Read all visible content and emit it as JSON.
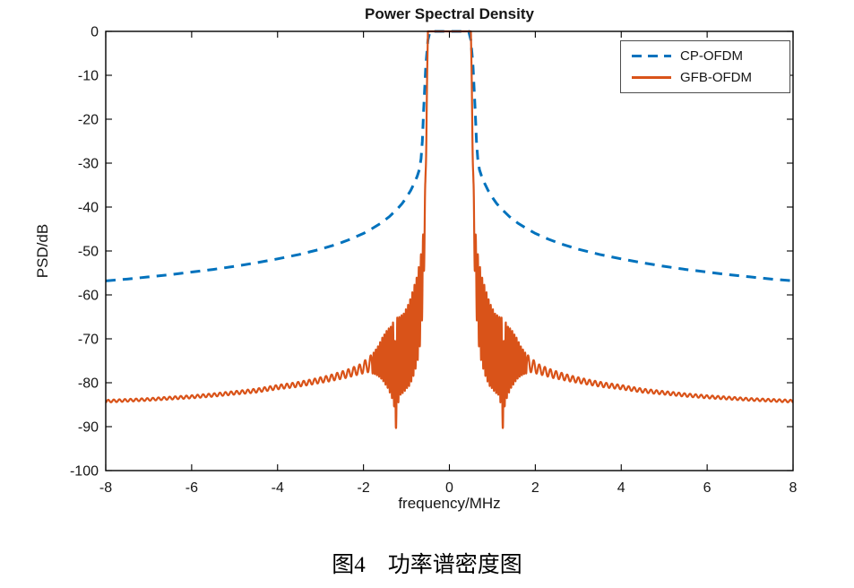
{
  "caption": "图4　功率谱密度图",
  "chart_data": {
    "type": "line",
    "title": "Power Spectral Density",
    "xlabel": "frequency/MHz",
    "ylabel": "PSD/dB",
    "xlim": [
      -8,
      8
    ],
    "ylim": [
      -100,
      0
    ],
    "xticks": [
      -8,
      -6,
      -4,
      -2,
      0,
      2,
      4,
      6,
      8
    ],
    "yticks": [
      0,
      -10,
      -20,
      -30,
      -40,
      -50,
      -60,
      -70,
      -80,
      -90,
      -100
    ],
    "grid": false,
    "legend_position": "top-right",
    "series": [
      {
        "name": "CP-OFDM",
        "color": "#0072BD",
        "style": "dashed",
        "symmetric": true,
        "points": [
          [
            0,
            0
          ],
          [
            0.45,
            0
          ],
          [
            0.5,
            -2
          ],
          [
            0.55,
            -8
          ],
          [
            0.6,
            -18
          ],
          [
            0.63,
            -25
          ],
          [
            0.66,
            -29
          ],
          [
            0.7,
            -31.5
          ],
          [
            0.75,
            -33
          ],
          [
            0.8,
            -34.2
          ],
          [
            0.9,
            -36.2
          ],
          [
            1.0,
            -37.8
          ],
          [
            1.1,
            -39.2
          ],
          [
            1.2,
            -40.3
          ],
          [
            1.4,
            -42.2
          ],
          [
            1.6,
            -43.7
          ],
          [
            1.8,
            -44.9
          ],
          [
            2.0,
            -46
          ],
          [
            2.3,
            -47.3
          ],
          [
            2.6,
            -48.4
          ],
          [
            3.0,
            -49.6
          ],
          [
            3.5,
            -50.8
          ],
          [
            4.0,
            -51.8
          ],
          [
            4.5,
            -52.7
          ],
          [
            5.0,
            -53.5
          ],
          [
            5.5,
            -54.2
          ],
          [
            6.0,
            -54.8
          ],
          [
            6.5,
            -55.4
          ],
          [
            7.0,
            -55.9
          ],
          [
            7.5,
            -56.4
          ],
          [
            8.0,
            -56.8
          ]
        ]
      },
      {
        "name": "GFB-OFDM",
        "color": "#D95319",
        "style": "solid",
        "symmetric": true,
        "flat_top": {
          "from": -0.5,
          "to": 0.5,
          "level_db": 0
        },
        "envelope": [
          [
            0.5,
            0,
            0
          ],
          [
            0.53,
            -18,
            2
          ],
          [
            0.56,
            -38,
            4
          ],
          [
            0.6,
            -52,
            7
          ],
          [
            0.65,
            -59,
            9
          ],
          [
            0.7,
            -63,
            10
          ],
          [
            0.75,
            -65.5,
            10
          ],
          [
            0.85,
            -69,
            10
          ],
          [
            0.95,
            -71.5,
            9.5
          ],
          [
            1.05,
            -73,
            9
          ],
          [
            1.15,
            -74,
            9
          ],
          [
            1.25,
            -76,
            11
          ],
          [
            1.35,
            -75,
            8
          ],
          [
            1.45,
            -74.5,
            6.5
          ],
          [
            1.55,
            -74.5,
            5
          ],
          [
            1.65,
            -75,
            3.5
          ],
          [
            1.75,
            -75.5,
            2.5
          ],
          [
            1.9,
            -76,
            1.6
          ],
          [
            2.1,
            -77,
            1.1
          ],
          [
            2.4,
            -78,
            0.9
          ],
          [
            2.8,
            -79,
            0.7
          ],
          [
            3.2,
            -79.8,
            0.6
          ],
          [
            3.6,
            -80.5,
            0.55
          ],
          [
            4.0,
            -81,
            0.5
          ],
          [
            4.5,
            -81.8,
            0.45
          ],
          [
            5.0,
            -82.3,
            0.4
          ],
          [
            5.5,
            -82.8,
            0.38
          ],
          [
            6.0,
            -83.2,
            0.35
          ],
          [
            6.5,
            -83.5,
            0.33
          ],
          [
            7.0,
            -83.8,
            0.3
          ],
          [
            7.5,
            -84,
            0.3
          ],
          [
            8.0,
            -84.2,
            0.3
          ]
        ],
        "ripple_period_mhz": {
          "near": 0.05,
          "far": 0.13,
          "boundary": 1.8
        },
        "notch": {
          "f": 1.253,
          "depth_db": 13,
          "width": 0.012,
          "floor_db": -90
        }
      }
    ]
  }
}
